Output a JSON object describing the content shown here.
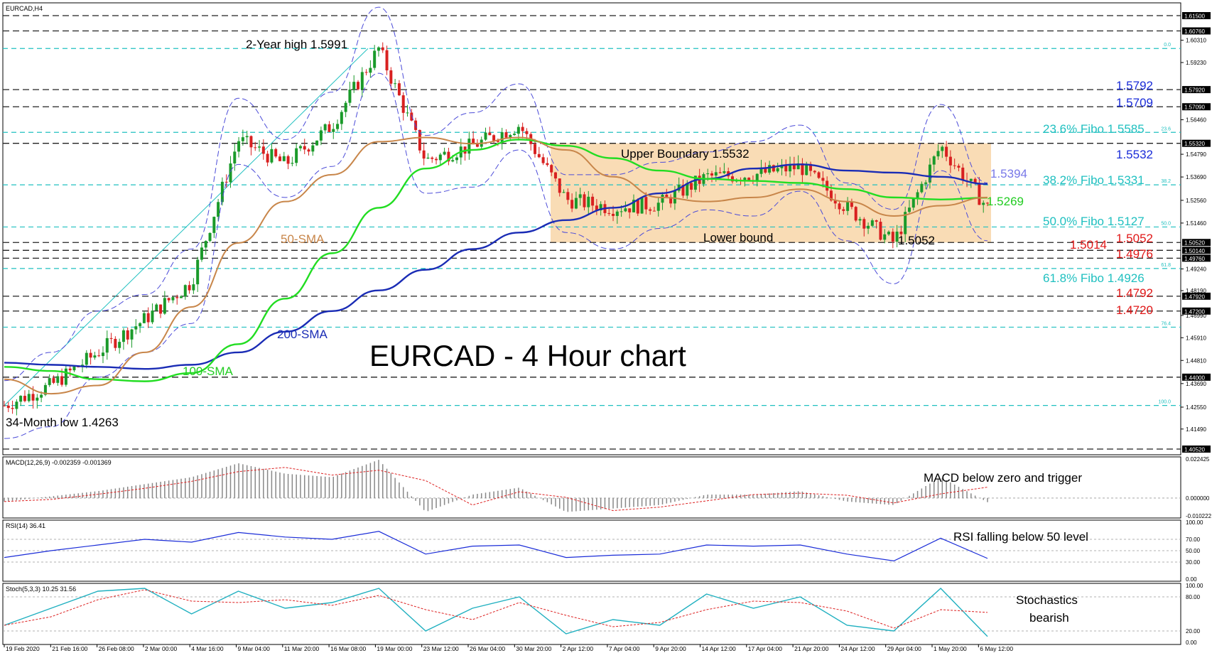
{
  "symbol_label": "EURCAD,H4",
  "colors": {
    "hline_black": "#222222",
    "fibo": "#20c0c0",
    "bb": "#4b4bd8",
    "sma50": "#c8864a",
    "sma100": "#22dd22",
    "sma200": "#1a2cb5",
    "up_candle": "#1a9a2a",
    "down_candle": "#d82020",
    "box_fill": "#f8d6a8",
    "annot_red": "#e01818",
    "annot_blue": "#1a2cd8",
    "annot_cyan": "#20c0c0",
    "annot_green": "#22cc22",
    "annot_periwinkle": "#7878e8",
    "panel_border": "#000000",
    "signal_red": "#dd2020",
    "osc_blue": "#1a2cd8",
    "stoch_cyan": "#20b0c0"
  },
  "annotations": {
    "title": "EURCAD - 4 Hour chart",
    "two_year_high": "2-Year high 1.5991",
    "month_low": "34-Month low 1.4263",
    "upper_boundary": "Upper Boundary 1.5532",
    "lower_bound": "Lower bound",
    "low_1_5052": "1.5052",
    "sma50": "50-SMA",
    "sma100": "100-SMA",
    "sma200": "200-SMA",
    "r1": "1.5792",
    "r2": "1.5709",
    "fibo236": "23.6% Fibo 1.5585",
    "r3": "1.5532",
    "bb_upper": "1.5394",
    "fibo382": "38.2% Fibo 1.5331",
    "sma100_value": "1.5269",
    "fibo50": "50.0% Fibo 1.5127",
    "s1": "1.5052",
    "s2": "1.5014",
    "s3": "1.4976",
    "fibo618": "61.8% Fibo 1.4926",
    "s4": "1.4792",
    "s5": "1.4720",
    "macd_note": "MACD below zero and trigger",
    "rsi_note": "RSI falling below 50 level",
    "stoch_note_1": "Stochastics",
    "stoch_note_2": "bearish"
  },
  "fibo_small_labels": [
    "0.0",
    "23.6",
    "38.2",
    "50.0",
    "61.8",
    "76.4",
    "100.0"
  ],
  "price_axis": {
    "boxed": [
      "1.61500",
      "1.60760",
      "1.57920",
      "1.57090",
      "1.55320",
      "1.50520",
      "1.50140",
      "1.49760",
      "1.47920",
      "1.47200",
      "1.44000",
      "1.40520"
    ],
    "plain": [
      "1.60310",
      "1.59230",
      "1.56460",
      "1.54790",
      "1.53690",
      "1.52560",
      "1.51460",
      "1.49240",
      "1.48190",
      "1.46990",
      "1.45910",
      "1.44810",
      "1.43690",
      "1.42550",
      "1.41490"
    ]
  },
  "macd_panel": {
    "label": "MACD(12,26,9) -0.002359 -0.001369",
    "ticks": [
      "0.022425",
      "0.000000",
      "-0.010222"
    ]
  },
  "rsi_panel": {
    "label": "RSI(14) 36.41",
    "ticks": [
      "100.00",
      "70.00",
      "50.00",
      "30.00",
      "0.00"
    ]
  },
  "stoch_panel": {
    "label": "Stoch(5,3,3) 10.25 31.56",
    "ticks": [
      "100.00",
      "80.00",
      "20.00",
      "0.00"
    ]
  },
  "x_axis_labels": [
    "19 Feb 2020",
    "21 Feb 16:00",
    "26 Feb 08:00",
    "2 Mar 00:00",
    "4 Mar 16:00",
    "9 Mar 04:00",
    "11 Mar 20:00",
    "16 Mar 08:00",
    "19 Mar 00:00",
    "23 Mar 12:00",
    "26 Mar 04:00",
    "30 Mar 20:00",
    "2 Apr 12:00",
    "7 Apr 04:00",
    "9 Apr 20:00",
    "14 Apr 12:00",
    "17 Apr 04:00",
    "21 Apr 20:00",
    "24 Apr 12:00",
    "29 Apr 04:00",
    "1 May 20:00",
    "6 May 12:00"
  ],
  "chart_data": {
    "type": "line",
    "title": "EURCAD - 4 Hour chart",
    "ylim": [
      1.4052,
      1.615
    ],
    "x": [
      "19 Feb 2020",
      "21 Feb 16:00",
      "26 Feb 08:00",
      "2 Mar 00:00",
      "4 Mar 16:00",
      "9 Mar 04:00",
      "11 Mar 20:00",
      "16 Mar 08:00",
      "19 Mar 00:00",
      "23 Mar 12:00",
      "26 Mar 04:00",
      "30 Mar 20:00",
      "2 Apr 12:00",
      "7 Apr 04:00",
      "9 Apr 20:00",
      "14 Apr 12:00",
      "17 Apr 04:00",
      "21 Apr 20:00",
      "24 Apr 12:00",
      "29 Apr 04:00",
      "1 May 20:00",
      "6 May 12:00"
    ],
    "series": [
      {
        "name": "Price",
        "values": [
          1.4263,
          1.436,
          1.452,
          1.468,
          1.486,
          1.555,
          1.543,
          1.562,
          1.5991,
          1.545,
          1.552,
          1.562,
          1.526,
          1.522,
          1.524,
          1.537,
          1.538,
          1.542,
          1.522,
          1.5052,
          1.552,
          1.522
        ]
      },
      {
        "name": "50-SMA",
        "values": [
          1.439,
          1.432,
          1.436,
          1.452,
          1.474,
          1.505,
          1.525,
          1.538,
          1.554,
          1.556,
          1.553,
          1.556,
          1.55,
          1.537,
          1.527,
          1.525,
          1.527,
          1.531,
          1.525,
          1.518,
          1.523,
          1.527
        ]
      },
      {
        "name": "100-SMA",
        "values": [
          1.445,
          1.443,
          1.439,
          1.438,
          1.442,
          1.456,
          1.478,
          1.5,
          1.522,
          1.541,
          1.55,
          1.555,
          1.552,
          1.546,
          1.54,
          1.536,
          1.535,
          1.534,
          1.531,
          1.527,
          1.526,
          1.5269
        ]
      },
      {
        "name": "200-SMA",
        "values": [
          1.447,
          1.446,
          1.445,
          1.444,
          1.446,
          1.452,
          1.462,
          1.472,
          1.482,
          1.492,
          1.502,
          1.51,
          1.516,
          1.522,
          1.529,
          1.536,
          1.541,
          1.543,
          1.54,
          1.539,
          1.537,
          1.5335
        ]
      }
    ],
    "levels": [
      1.615,
      1.6076,
      1.5792,
      1.5709,
      1.5532,
      1.5052,
      1.5014,
      1.4976,
      1.4792,
      1.472,
      1.44,
      1.4052
    ],
    "fibo_levels": [
      1.5991,
      1.5585,
      1.5331,
      1.5127,
      1.4926,
      1.4642,
      1.4263
    ],
    "range_box": [
      1.5052,
      1.5532
    ],
    "macd": [
      -0.002,
      0.001,
      0.004,
      0.008,
      0.012,
      0.02,
      0.014,
      0.012,
      0.022,
      -0.008,
      0.002,
      0.006,
      -0.008,
      -0.006,
      -0.004,
      0.002,
      0.002,
      0.004,
      -0.002,
      -0.004,
      0.012,
      -0.002359
    ],
    "rsi": [
      38,
      50,
      60,
      70,
      65,
      82,
      74,
      70,
      84,
      44,
      58,
      60,
      38,
      42,
      44,
      60,
      58,
      60,
      44,
      32,
      72,
      36.41
    ],
    "stoch": [
      30,
      60,
      90,
      95,
      50,
      90,
      60,
      70,
      95,
      20,
      60,
      80,
      15,
      40,
      30,
      85,
      60,
      80,
      30,
      20,
      95,
      10.25
    ]
  }
}
